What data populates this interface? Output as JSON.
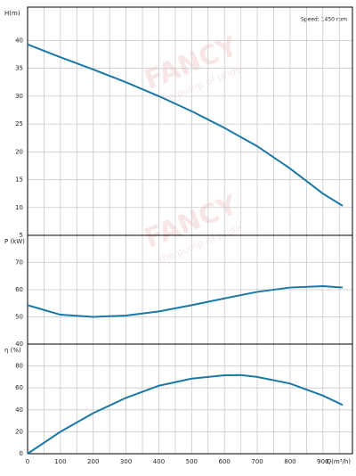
{
  "annotations": {
    "speed": "Speed: 1450 rpm",
    "watermark_brand": "FANCY",
    "watermark_slogan": "the pump of pride"
  },
  "chart_data": [
    {
      "type": "line",
      "ylabel": "H(m)",
      "xlim": [
        0,
        990
      ],
      "xticks": [
        0,
        100,
        200,
        300,
        400,
        500,
        600,
        700,
        800,
        900
      ],
      "x_minor_ticks": [
        50,
        150,
        250,
        350,
        450,
        550,
        650,
        750,
        850,
        950
      ],
      "ylim": [
        5,
        46
      ],
      "yticks": [
        5,
        10,
        15,
        20,
        25,
        30,
        35,
        40
      ],
      "grid": true,
      "x": [
        0,
        100,
        200,
        300,
        400,
        500,
        600,
        700,
        800,
        900,
        960
      ],
      "series": [
        {
          "color": "#1a78a6",
          "values": [
            39.3,
            37,
            34.8,
            32.5,
            30,
            27.3,
            24.3,
            21,
            17,
            12.5,
            10.3
          ]
        }
      ]
    },
    {
      "type": "line",
      "ylabel": "P (kW)",
      "xlim": [
        0,
        990
      ],
      "xticks": [
        0,
        100,
        200,
        300,
        400,
        500,
        600,
        700,
        800,
        900
      ],
      "x_minor_ticks": [
        50,
        150,
        250,
        350,
        450,
        550,
        650,
        750,
        850,
        950
      ],
      "ylim": [
        40,
        80
      ],
      "yticks": [
        40,
        50,
        60,
        70
      ],
      "grid": true,
      "x": [
        0,
        100,
        200,
        300,
        400,
        500,
        600,
        700,
        800,
        900,
        960
      ],
      "series": [
        {
          "color": "#1a78a6",
          "values": [
            54.3,
            50.8,
            50,
            50.5,
            52,
            54.3,
            56.8,
            59.2,
            60.8,
            61.3,
            60.8
          ]
        }
      ]
    },
    {
      "type": "line",
      "ylabel": "η (%)",
      "xlabel": "Q(m³/h)",
      "xlim": [
        0,
        990
      ],
      "xticks": [
        0,
        100,
        200,
        300,
        400,
        500,
        600,
        700,
        800,
        900
      ],
      "x_minor_ticks": [
        50,
        150,
        250,
        350,
        450,
        550,
        650,
        750,
        850,
        950
      ],
      "ylim": [
        0,
        100
      ],
      "yticks": [
        0,
        20,
        40,
        60,
        80
      ],
      "grid": true,
      "x": [
        0,
        100,
        200,
        300,
        400,
        500,
        600,
        650,
        700,
        800,
        900,
        960
      ],
      "series": [
        {
          "color": "#1a78a6",
          "values": [
            0,
            20,
            37,
            51,
            62,
            68.5,
            71.5,
            71.7,
            70,
            64,
            53,
            44.5
          ]
        }
      ]
    }
  ]
}
